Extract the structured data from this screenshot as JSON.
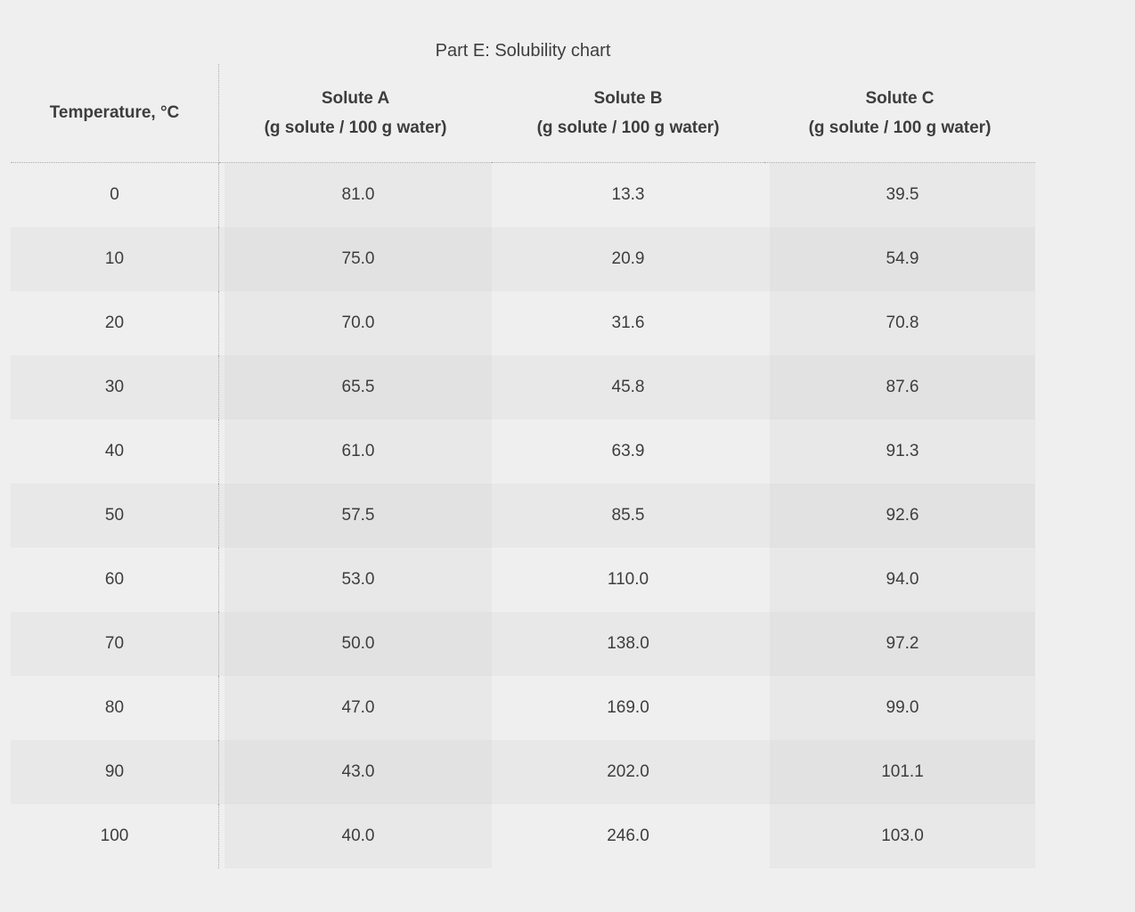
{
  "title": "Part E: Solubility chart",
  "table": {
    "temperature_header": "Temperature, °C",
    "columns": [
      {
        "name": "Solute A",
        "unit": "(g solute / 100 g water)"
      },
      {
        "name": "Solute B",
        "unit": "(g solute / 100 g water)"
      },
      {
        "name": "Solute C",
        "unit": "(g solute / 100 g water)"
      }
    ]
  },
  "chart_data": {
    "type": "table",
    "title": "Part E: Solubility chart",
    "xlabel": "Temperature, °C",
    "categories": [
      0,
      10,
      20,
      30,
      40,
      50,
      60,
      70,
      80,
      90,
      100
    ],
    "series": [
      {
        "name": "Solute A (g solute / 100 g water)",
        "values": [
          81.0,
          75.0,
          70.0,
          65.5,
          61.0,
          57.5,
          53.0,
          50.0,
          47.0,
          43.0,
          40.0
        ]
      },
      {
        "name": "Solute B (g solute / 100 g water)",
        "values": [
          13.3,
          20.9,
          31.6,
          45.8,
          63.9,
          85.5,
          110.0,
          138.0,
          169.0,
          202.0,
          246.0
        ]
      },
      {
        "name": "Solute C (g solute / 100 g water)",
        "values": [
          39.5,
          54.9,
          70.8,
          87.6,
          91.3,
          92.6,
          94.0,
          97.2,
          99.0,
          101.1,
          103.0
        ]
      }
    ],
    "value_decimals": 1,
    "grid": false,
    "legend": "none",
    "colors": {
      "background": "#f0efef",
      "band": "#e9e8e8",
      "stripe": "#e9e8e8",
      "band_stripe": "#e3e2e2",
      "text": "#3d3d3d",
      "dotted_rule": "#ababab"
    }
  }
}
